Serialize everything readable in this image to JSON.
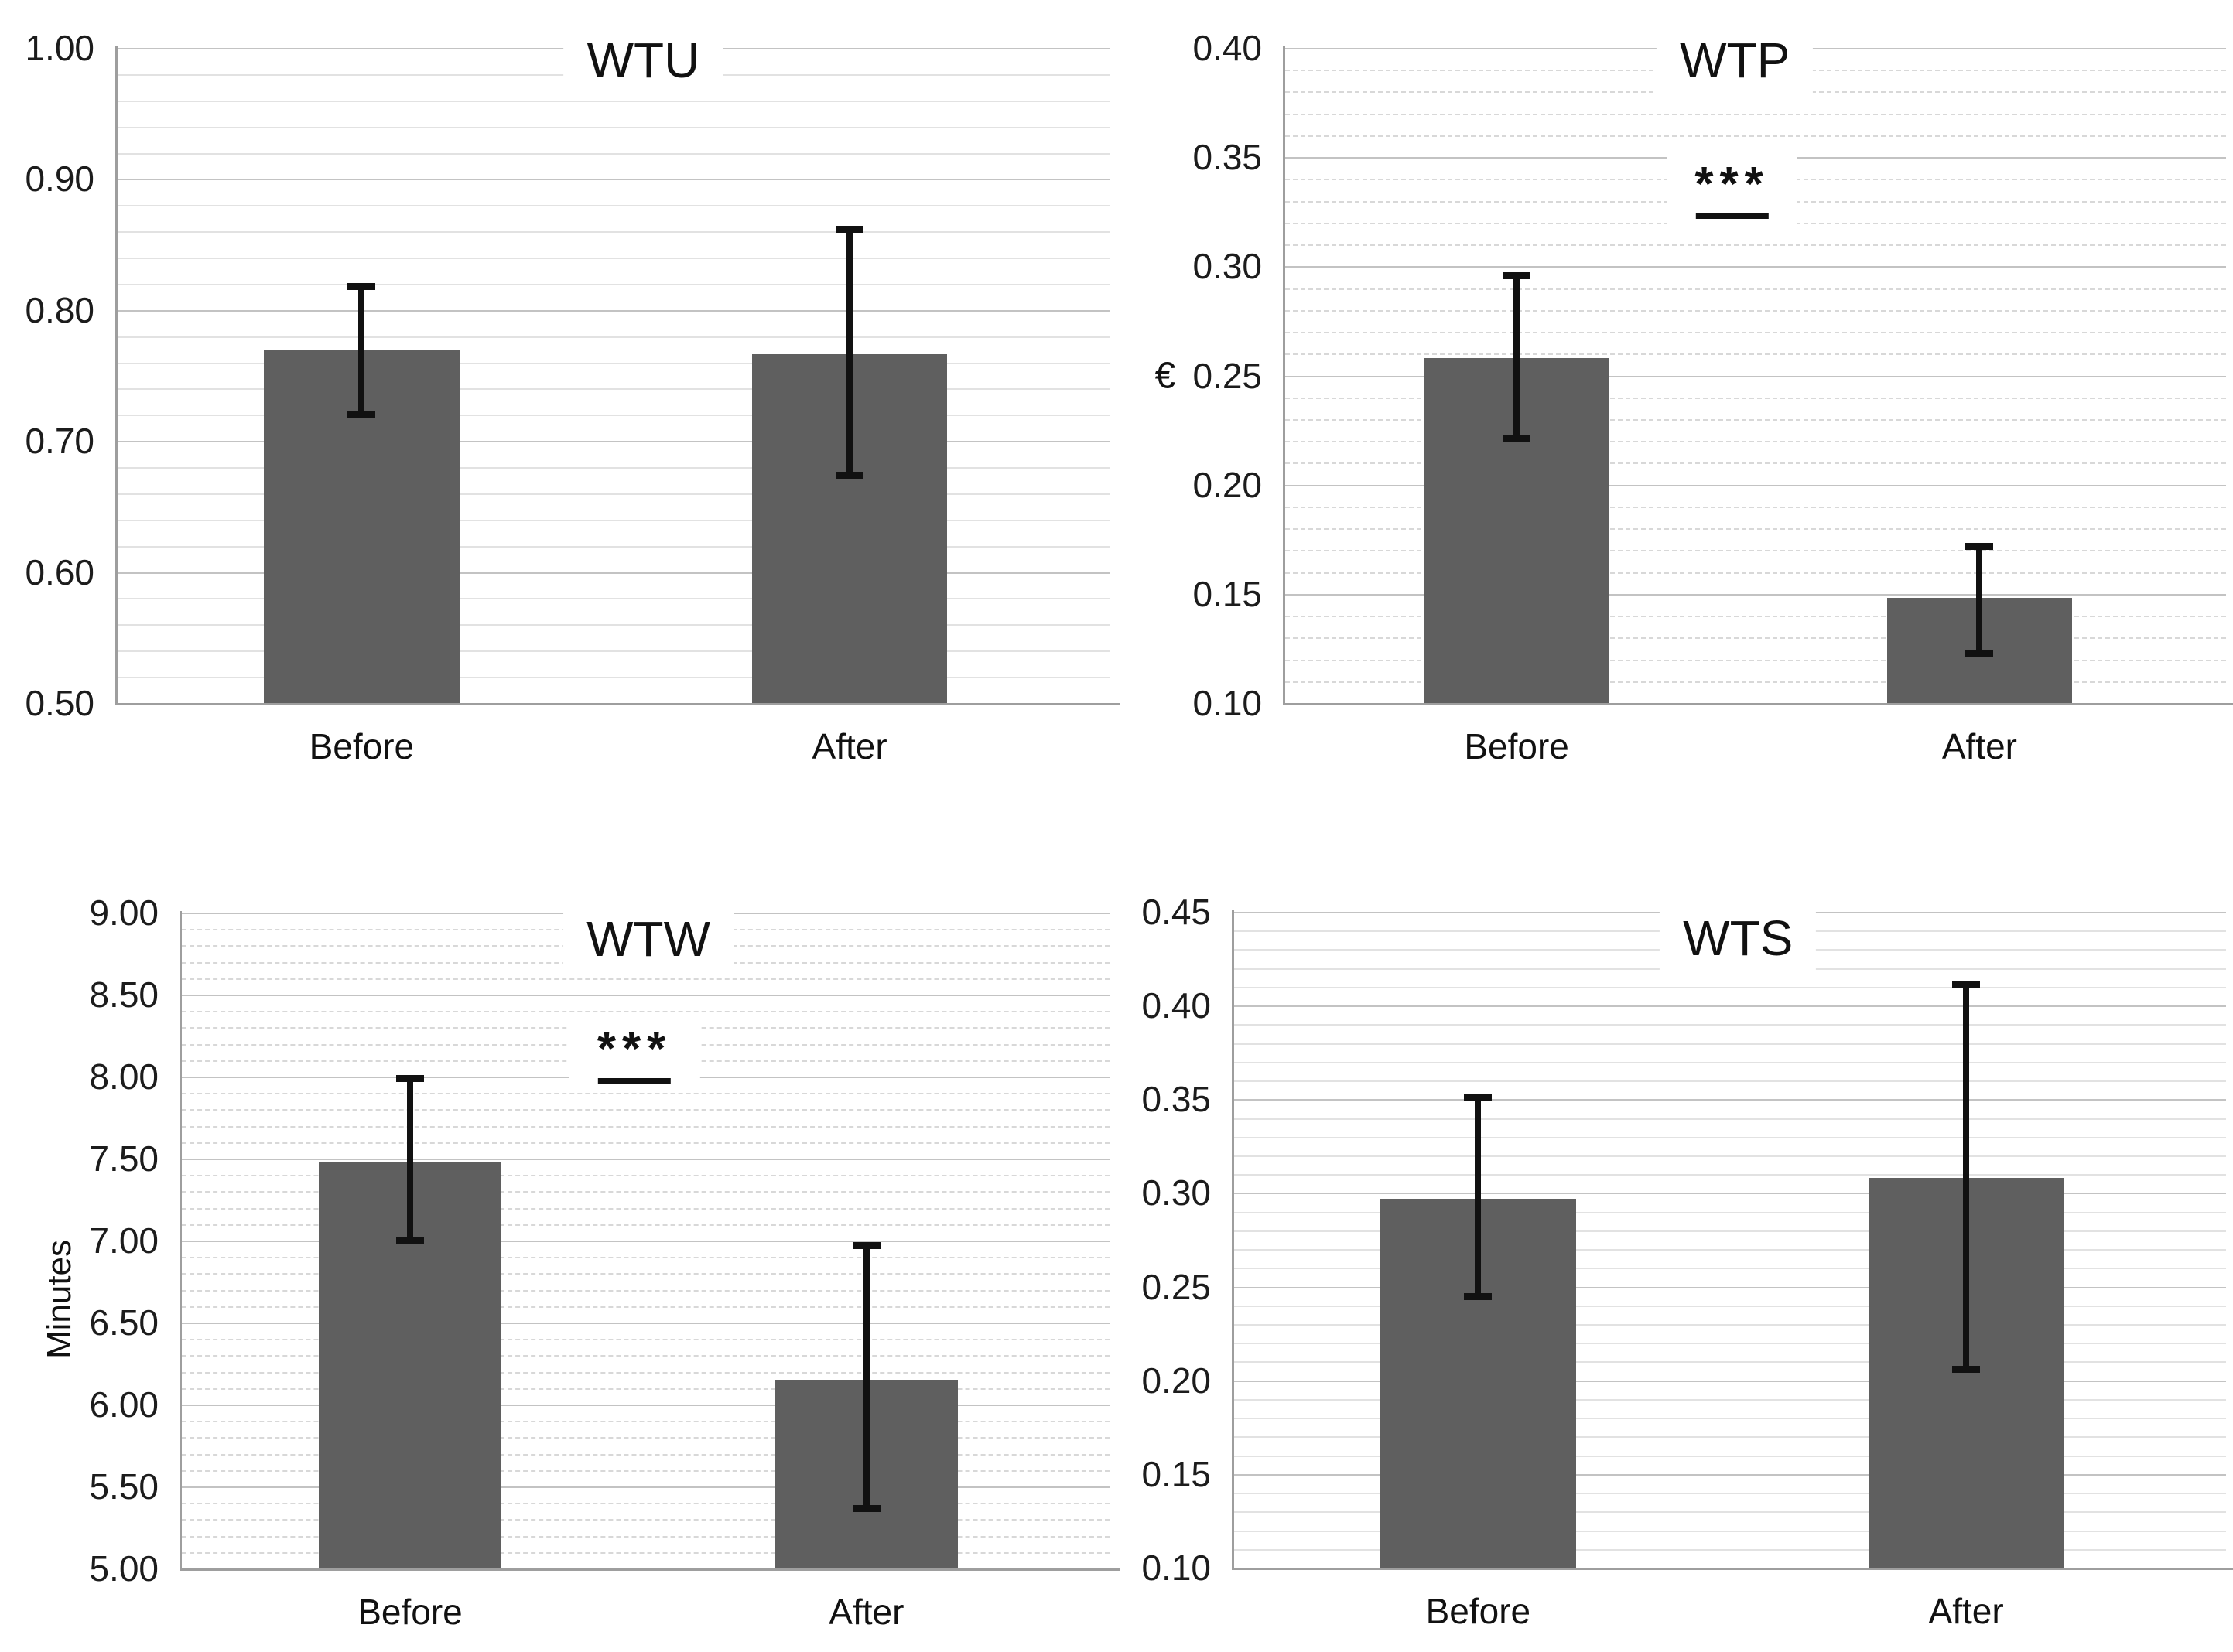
{
  "colors": {
    "bar": "#5f5f5f",
    "error_bar": "#111111",
    "axis_line": "#9e9e9e",
    "grid_major": "#c3c3c3",
    "grid_minor": "#e1e1e1",
    "background": "#ffffff",
    "text": "#1a1a1a"
  },
  "chart_data": {
    "type": "bar",
    "layout": "2x2-grid",
    "grid": "on",
    "legend": "none",
    "categories": [
      "Before",
      "After"
    ],
    "charts": [
      {
        "title": "WTU",
        "position": "top-left",
        "y_label": "",
        "significance": "",
        "grid_minor_dashed": false,
        "y_axis": {
          "min": 0.5,
          "max": 1.0,
          "major_step": 0.1,
          "minor_step": 0.02,
          "tick_format_decimals": 2
        },
        "series": [
          {
            "category": "Before",
            "value": 0.769,
            "error_low": 0.721,
            "error_high": 0.818
          },
          {
            "category": "After",
            "value": 0.766,
            "error_low": 0.674,
            "error_high": 0.862
          }
        ]
      },
      {
        "title": "WTP",
        "position": "top-right",
        "y_label": "€",
        "significance": "***",
        "grid_minor_dashed": true,
        "y_axis": {
          "min": 0.1,
          "max": 0.4,
          "major_step": 0.05,
          "minor_step": 0.01,
          "tick_format_decimals": 2
        },
        "series": [
          {
            "category": "Before",
            "value": 0.258,
            "error_low": 0.221,
            "error_high": 0.296
          },
          {
            "category": "After",
            "value": 0.148,
            "error_low": 0.123,
            "error_high": 0.172
          }
        ]
      },
      {
        "title": "WTW",
        "position": "bottom-left",
        "y_label": "Minutes",
        "significance": "***",
        "grid_minor_dashed": true,
        "y_axis": {
          "min": 5.0,
          "max": 9.0,
          "major_step": 0.5,
          "minor_step": 0.1,
          "tick_format_decimals": 2
        },
        "series": [
          {
            "category": "Before",
            "value": 7.48,
            "error_low": 7.0,
            "error_high": 7.99
          },
          {
            "category": "After",
            "value": 6.15,
            "error_low": 5.37,
            "error_high": 6.97
          }
        ]
      },
      {
        "title": "WTS",
        "position": "bottom-right",
        "y_label": "",
        "significance": "",
        "grid_minor_dashed": false,
        "y_axis": {
          "min": 0.1,
          "max": 0.45,
          "major_step": 0.05,
          "minor_step": 0.01,
          "tick_format_decimals": 2
        },
        "series": [
          {
            "category": "Before",
            "value": 0.297,
            "error_low": 0.245,
            "error_high": 0.351
          },
          {
            "category": "After",
            "value": 0.308,
            "error_low": 0.206,
            "error_high": 0.411
          }
        ]
      }
    ]
  }
}
